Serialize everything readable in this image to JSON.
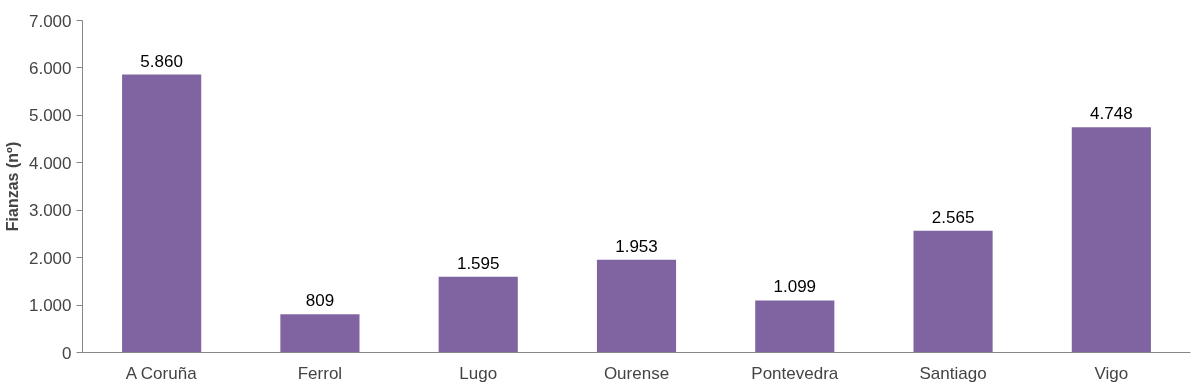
{
  "chart_data": {
    "type": "bar",
    "ylabel": "Fianzas (nº)",
    "categories": [
      "A Coruña",
      "Ferrol",
      "Lugo",
      "Ourense",
      "Pontevedra",
      "Santiago",
      "Vigo"
    ],
    "values": [
      5860,
      809,
      1595,
      1953,
      1099,
      2565,
      4748
    ],
    "value_labels": [
      "5.860",
      "809",
      "1.595",
      "1.953",
      "1.099",
      "2.565",
      "4.748"
    ],
    "color": "#8064a2",
    "ylim": [
      0,
      7000
    ],
    "yticks": [
      {
        "value": 0,
        "label": "0"
      },
      {
        "value": 1000,
        "label": "1.000"
      },
      {
        "value": 2000,
        "label": "2.000"
      },
      {
        "value": 3000,
        "label": "3.000"
      },
      {
        "value": 4000,
        "label": "4.000"
      },
      {
        "value": 5000,
        "label": "5.000"
      },
      {
        "value": 6000,
        "label": "6.000"
      },
      {
        "value": 7000,
        "label": "7.000"
      }
    ],
    "grid": false
  }
}
